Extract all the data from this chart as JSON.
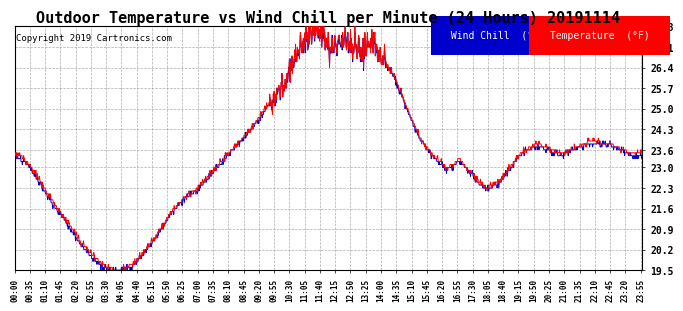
{
  "title": "Outdoor Temperature vs Wind Chill per Minute (24 Hours) 20191114",
  "copyright": "Copyright 2019 Cartronics.com",
  "legend_labels": [
    "Wind Chill  (°F)",
    "Temperature  (°F)"
  ],
  "wind_chill_color": "#0000cc",
  "temperature_color": "#ff0000",
  "background_color": "#ffffff",
  "grid_color": "#999999",
  "ylim": [
    19.5,
    27.8
  ],
  "yticks": [
    19.5,
    20.2,
    20.9,
    21.6,
    22.3,
    23.0,
    23.6,
    24.3,
    25.0,
    25.7,
    26.4,
    27.1,
    27.8
  ],
  "title_fontsize": 11,
  "copyright_fontsize": 6.5,
  "tick_fontsize": 5.5,
  "ytick_fontsize": 7,
  "legend_fontsize": 7,
  "xtick_labels": [
    "00:00",
    "00:35",
    "01:10",
    "01:45",
    "02:20",
    "02:55",
    "03:30",
    "04:05",
    "04:40",
    "05:15",
    "05:50",
    "06:25",
    "07:00",
    "07:35",
    "08:10",
    "08:45",
    "09:20",
    "09:55",
    "10:30",
    "11:05",
    "11:40",
    "12:15",
    "12:50",
    "13:25",
    "14:00",
    "14:35",
    "15:10",
    "15:45",
    "16:20",
    "16:55",
    "17:30",
    "18:05",
    "18:40",
    "19:15",
    "19:50",
    "20:25",
    "21:00",
    "21:35",
    "22:10",
    "22:45",
    "23:20",
    "23:55"
  ],
  "key_points_temp": [
    [
      0,
      23.5
    ],
    [
      30,
      23.2
    ],
    [
      60,
      22.5
    ],
    [
      90,
      21.8
    ],
    [
      120,
      21.2
    ],
    [
      150,
      20.5
    ],
    [
      180,
      20.0
    ],
    [
      210,
      19.6
    ],
    [
      240,
      19.5
    ],
    [
      270,
      19.7
    ],
    [
      300,
      20.2
    ],
    [
      330,
      20.8
    ],
    [
      360,
      21.5
    ],
    [
      390,
      22.0
    ],
    [
      420,
      22.3
    ],
    [
      450,
      22.8
    ],
    [
      480,
      23.3
    ],
    [
      510,
      23.8
    ],
    [
      540,
      24.3
    ],
    [
      570,
      24.9
    ],
    [
      600,
      25.5
    ],
    [
      615,
      25.8
    ],
    [
      630,
      26.3
    ],
    [
      645,
      26.8
    ],
    [
      660,
      27.2
    ],
    [
      675,
      27.6
    ],
    [
      690,
      27.8
    ],
    [
      705,
      27.5
    ],
    [
      720,
      27.0
    ],
    [
      735,
      27.2
    ],
    [
      750,
      27.4
    ],
    [
      765,
      27.3
    ],
    [
      780,
      27.1
    ],
    [
      795,
      26.9
    ],
    [
      810,
      27.1
    ],
    [
      825,
      27.2
    ],
    [
      840,
      26.8
    ],
    [
      855,
      26.5
    ],
    [
      870,
      26.1
    ],
    [
      885,
      25.6
    ],
    [
      900,
      25.0
    ],
    [
      915,
      24.5
    ],
    [
      930,
      24.0
    ],
    [
      945,
      23.7
    ],
    [
      960,
      23.4
    ],
    [
      975,
      23.2
    ],
    [
      990,
      23.0
    ],
    [
      1005,
      23.1
    ],
    [
      1020,
      23.3
    ],
    [
      1035,
      23.0
    ],
    [
      1050,
      22.8
    ],
    [
      1065,
      22.5
    ],
    [
      1080,
      22.3
    ],
    [
      1095,
      22.4
    ],
    [
      1110,
      22.5
    ],
    [
      1125,
      22.8
    ],
    [
      1140,
      23.1
    ],
    [
      1155,
      23.4
    ],
    [
      1170,
      23.6
    ],
    [
      1185,
      23.7
    ],
    [
      1200,
      23.8
    ],
    [
      1215,
      23.7
    ],
    [
      1230,
      23.6
    ],
    [
      1245,
      23.5
    ],
    [
      1260,
      23.5
    ],
    [
      1275,
      23.6
    ],
    [
      1290,
      23.7
    ],
    [
      1305,
      23.8
    ],
    [
      1320,
      23.9
    ],
    [
      1335,
      23.9
    ],
    [
      1350,
      23.8
    ],
    [
      1365,
      23.8
    ],
    [
      1380,
      23.7
    ],
    [
      1395,
      23.6
    ],
    [
      1410,
      23.5
    ],
    [
      1425,
      23.5
    ],
    [
      1439,
      23.5
    ]
  ],
  "key_points_wc": [
    [
      0,
      23.4
    ],
    [
      30,
      23.1
    ],
    [
      60,
      22.4
    ],
    [
      90,
      21.7
    ],
    [
      120,
      21.1
    ],
    [
      150,
      20.4
    ],
    [
      180,
      19.9
    ],
    [
      210,
      19.55
    ],
    [
      240,
      19.5
    ],
    [
      270,
      19.65
    ],
    [
      300,
      20.15
    ],
    [
      330,
      20.75
    ],
    [
      360,
      21.45
    ],
    [
      390,
      21.95
    ],
    [
      420,
      22.25
    ],
    [
      450,
      22.75
    ],
    [
      480,
      23.25
    ],
    [
      510,
      23.75
    ],
    [
      540,
      24.25
    ],
    [
      570,
      24.85
    ],
    [
      600,
      25.45
    ],
    [
      615,
      25.75
    ],
    [
      630,
      26.25
    ],
    [
      645,
      26.75
    ],
    [
      660,
      27.15
    ],
    [
      675,
      27.55
    ],
    [
      690,
      27.75
    ],
    [
      705,
      27.45
    ],
    [
      720,
      26.95
    ],
    [
      735,
      27.15
    ],
    [
      750,
      27.35
    ],
    [
      765,
      27.25
    ],
    [
      780,
      27.05
    ],
    [
      795,
      26.85
    ],
    [
      810,
      27.05
    ],
    [
      825,
      27.15
    ],
    [
      840,
      26.75
    ],
    [
      855,
      26.45
    ],
    [
      870,
      26.05
    ],
    [
      885,
      25.55
    ],
    [
      900,
      24.95
    ],
    [
      915,
      24.45
    ],
    [
      930,
      23.95
    ],
    [
      945,
      23.65
    ],
    [
      960,
      23.35
    ],
    [
      975,
      23.15
    ],
    [
      990,
      22.95
    ],
    [
      1005,
      23.05
    ],
    [
      1020,
      23.25
    ],
    [
      1035,
      22.95
    ],
    [
      1050,
      22.75
    ],
    [
      1065,
      22.45
    ],
    [
      1080,
      22.25
    ],
    [
      1095,
      22.35
    ],
    [
      1110,
      22.45
    ],
    [
      1125,
      22.75
    ],
    [
      1140,
      23.05
    ],
    [
      1155,
      23.35
    ],
    [
      1170,
      23.55
    ],
    [
      1185,
      23.65
    ],
    [
      1200,
      23.75
    ],
    [
      1215,
      23.65
    ],
    [
      1230,
      23.55
    ],
    [
      1245,
      23.45
    ],
    [
      1260,
      23.45
    ],
    [
      1275,
      23.55
    ],
    [
      1290,
      23.65
    ],
    [
      1305,
      23.75
    ],
    [
      1320,
      23.85
    ],
    [
      1335,
      23.85
    ],
    [
      1350,
      23.75
    ],
    [
      1365,
      23.75
    ],
    [
      1380,
      23.65
    ],
    [
      1395,
      23.55
    ],
    [
      1410,
      23.45
    ],
    [
      1425,
      23.45
    ],
    [
      1439,
      23.45
    ]
  ]
}
